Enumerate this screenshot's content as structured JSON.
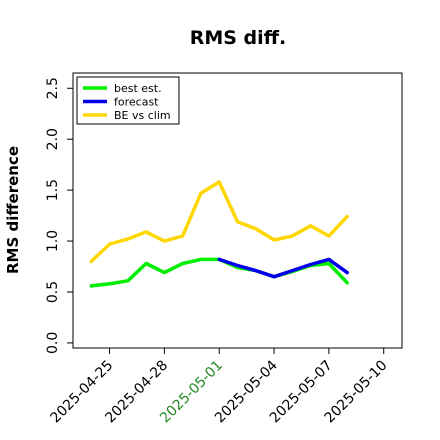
{
  "chart_data": {
    "type": "line",
    "title": "RMS diff.",
    "xlabel": "",
    "ylabel": "RMS difference",
    "x_start": "2025-04-24",
    "x_range": [
      "2025-04-23",
      "2025-05-11"
    ],
    "xtick_labels": [
      "2025-04-25",
      "2025-04-28",
      "2025-05-01",
      "2025-05-04",
      "2025-05-07",
      "2025-05-10"
    ],
    "xtick_colors": [
      "#000000",
      "#000000",
      "#228b22",
      "#000000",
      "#000000",
      "#000000"
    ],
    "ylim": [
      -0.05,
      2.65
    ],
    "yticks": [
      0.0,
      0.5,
      1.0,
      1.5,
      2.0,
      2.5
    ],
    "ytick_labels": [
      "0.0",
      "0.5",
      "1.0",
      "1.5",
      "2.0",
      "2.5"
    ],
    "legend_position": "top-left",
    "series": [
      {
        "name": "best est.",
        "color": "#00ee00",
        "x": [
          "2025-04-24",
          "2025-04-25",
          "2025-04-26",
          "2025-04-27",
          "2025-04-28",
          "2025-04-29",
          "2025-04-30",
          "2025-05-01",
          "2025-05-02",
          "2025-05-03",
          "2025-05-04",
          "2025-05-05",
          "2025-05-06",
          "2025-05-07",
          "2025-05-08"
        ],
        "values": [
          0.56,
          0.58,
          0.61,
          0.78,
          0.69,
          0.78,
          0.82,
          0.82,
          0.74,
          0.71,
          0.65,
          0.7,
          0.76,
          0.78,
          0.59
        ]
      },
      {
        "name": "forecast",
        "color": "#0000ee",
        "x": [
          "2025-05-01",
          "2025-05-02",
          "2025-05-03",
          "2025-05-04",
          "2025-05-05",
          "2025-05-06",
          "2025-05-07",
          "2025-05-08"
        ],
        "values": [
          0.82,
          0.76,
          0.71,
          0.65,
          0.71,
          0.77,
          0.82,
          0.69
        ]
      },
      {
        "name": "BE vs clim",
        "color": "#ffd700",
        "x": [
          "2025-04-24",
          "2025-04-25",
          "2025-04-26",
          "2025-04-27",
          "2025-04-28",
          "2025-04-29",
          "2025-04-30",
          "2025-05-01",
          "2025-05-02",
          "2025-05-03",
          "2025-05-04",
          "2025-05-05",
          "2025-05-06",
          "2025-05-07",
          "2025-05-08"
        ],
        "values": [
          0.8,
          0.97,
          1.02,
          1.09,
          1.0,
          1.05,
          1.47,
          1.58,
          1.19,
          1.12,
          1.01,
          1.05,
          1.15,
          1.05,
          1.24
        ]
      }
    ]
  }
}
